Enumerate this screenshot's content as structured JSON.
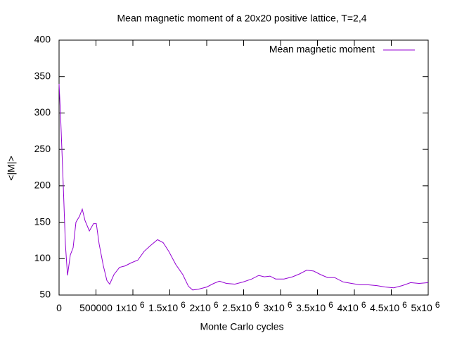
{
  "chart_data": {
    "type": "line",
    "title": "Mean magnetic moment of a 20x20 positive lattice, T=2,4",
    "x_label": "Monte Carlo cycles",
    "y_label": "<|M|>",
    "legend": "top-right",
    "series": [
      {
        "name": "Mean magnetic moment",
        "color": "#9400d3",
        "x": [
          0,
          19000,
          38000,
          57000,
          86000,
          114000,
          152000,
          190000,
          229000,
          276000,
          314000,
          352000,
          410000,
          467000,
          505000,
          543000,
          600000,
          648000,
          686000,
          743000,
          819000,
          895000,
          971000,
          1067000,
          1152000,
          1238000,
          1333000,
          1410000,
          1486000,
          1581000,
          1676000,
          1752000,
          1810000,
          1886000,
          2000000,
          2095000,
          2171000,
          2267000,
          2381000,
          2495000,
          2610000,
          2705000,
          2781000,
          2857000,
          2933000,
          3048000,
          3162000,
          3257000,
          3352000,
          3448000,
          3543000,
          3638000,
          3733000,
          3848000,
          3962000,
          4076000,
          4190000,
          4305000,
          4419000,
          4533000,
          4648000,
          4762000,
          4876000,
          5000000
        ],
        "values": [
          340,
          300,
          250,
          200,
          120,
          77,
          105,
          115,
          150,
          158,
          168,
          152,
          138,
          148,
          148,
          120,
          90,
          70,
          65,
          78,
          88,
          90,
          94,
          98,
          110,
          118,
          126,
          122,
          110,
          92,
          78,
          62,
          57,
          58,
          61,
          66,
          69,
          66,
          65,
          68,
          72,
          77,
          75,
          76,
          72,
          72,
          75,
          79,
          84,
          83,
          78,
          74,
          74,
          68,
          66,
          64,
          64,
          63,
          61,
          60,
          63,
          67,
          66,
          67
        ]
      }
    ],
    "xlim": [
      0,
      5000000
    ],
    "xticks": [
      0,
      500000,
      {
        "value": 1000000,
        "label": "1x10^6"
      },
      {
        "value": 1500000,
        "label": "1.5x10^6"
      },
      {
        "value": 2000000,
        "label": "2x10^6"
      },
      {
        "value": 2500000,
        "label": "2.5x10^6"
      },
      {
        "value": 3000000,
        "label": "3x10^6"
      },
      {
        "value": 3500000,
        "label": "3.5x10^6"
      },
      {
        "value": 4000000,
        "label": "4x10^6"
      },
      {
        "value": 4500000,
        "label": "4.5x10^6"
      },
      {
        "value": 5000000,
        "label": "5x10^6"
      }
    ],
    "ylim": [
      50,
      400
    ],
    "yticks": [
      50,
      100,
      150,
      200,
      250,
      300,
      350,
      400
    ]
  }
}
